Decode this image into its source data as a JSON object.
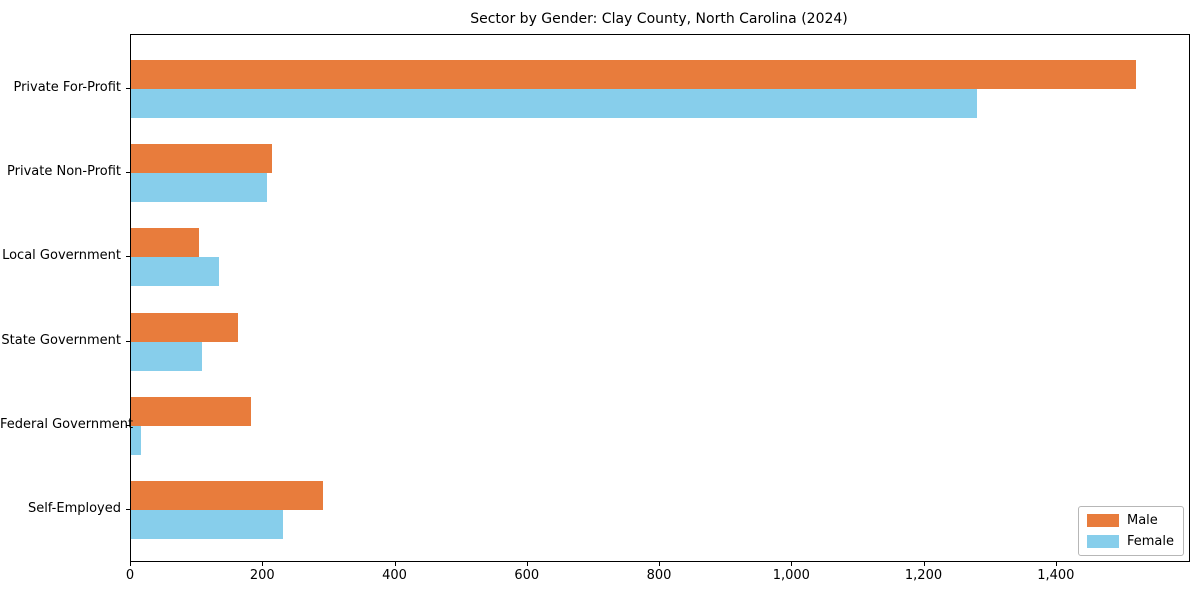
{
  "title": "Sector by Gender: Clay County, North Carolina (2024)",
  "chart_data": {
    "type": "bar",
    "orientation": "horizontal",
    "title": "Sector by Gender: Clay County, North Carolina (2024)",
    "categories": [
      "Private For-Profit",
      "Private Non-Profit",
      "Local Government",
      "State Government",
      "Federal Government",
      "Self-Employed"
    ],
    "series": [
      {
        "name": "Male",
        "color": "#E87C3C",
        "values": [
          1520,
          213,
          103,
          162,
          181,
          290
        ]
      },
      {
        "name": "Female",
        "color": "#87CEEB",
        "values": [
          1280,
          205,
          133,
          108,
          15,
          230
        ]
      }
    ],
    "xlabel": "",
    "ylabel": "",
    "xlim": [
      0,
      1600
    ],
    "xticks": [
      0,
      200,
      400,
      600,
      800,
      1000,
      1200,
      1400
    ],
    "xtick_label_format": "comma-thousands",
    "grid": false,
    "legend_position": "lower right",
    "background_color": "#ffffff",
    "axis_color": "#000000",
    "text_color": "#000000"
  }
}
